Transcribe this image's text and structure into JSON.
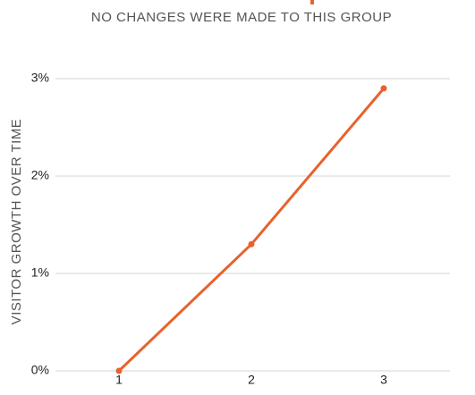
{
  "chart_data": {
    "type": "line",
    "subtitle": "NO CHANGES WERE MADE TO THIS GROUP",
    "y_label": "VISITOR GROWTH OVER TIME",
    "x": [
      1,
      2,
      3
    ],
    "series": [
      {
        "color": "#e8622c",
        "values": [
          0,
          1.3,
          2.9
        ]
      }
    ],
    "xlim": [
      0.5,
      3.5
    ],
    "xticks": [
      1,
      2,
      3
    ],
    "ylim": [
      0,
      3
    ],
    "yticks": [
      {
        "value": 0,
        "label": "0%"
      },
      {
        "value": 1,
        "label": "1%"
      },
      {
        "value": 2,
        "label": "2%"
      },
      {
        "value": 3,
        "label": "3%"
      }
    ],
    "grid": true
  }
}
